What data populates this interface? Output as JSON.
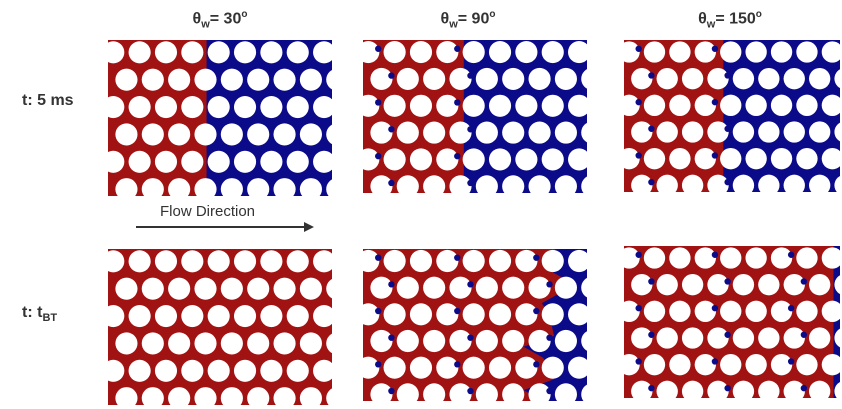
{
  "columns": [
    {
      "theta_sym": "θ",
      "theta_sub": "w",
      "eq": "= 30",
      "deg": "o"
    },
    {
      "theta_sym": "θ",
      "theta_sub": "w",
      "eq": "= 90",
      "deg": "o"
    },
    {
      "theta_sym": "θ",
      "theta_sub": "w",
      "eq": "= 150",
      "deg": "o"
    }
  ],
  "rows": [
    {
      "label_main": "t: 5 ms",
      "label_sub": ""
    },
    {
      "label_main": "t: t",
      "label_sub": "BT"
    }
  ],
  "annotation": {
    "flow_label": "Flow Direction"
  },
  "colors": {
    "invading": "#a11212",
    "defending": "#0b0b8a",
    "grain": "#ffffff",
    "text": "#333333"
  }
}
